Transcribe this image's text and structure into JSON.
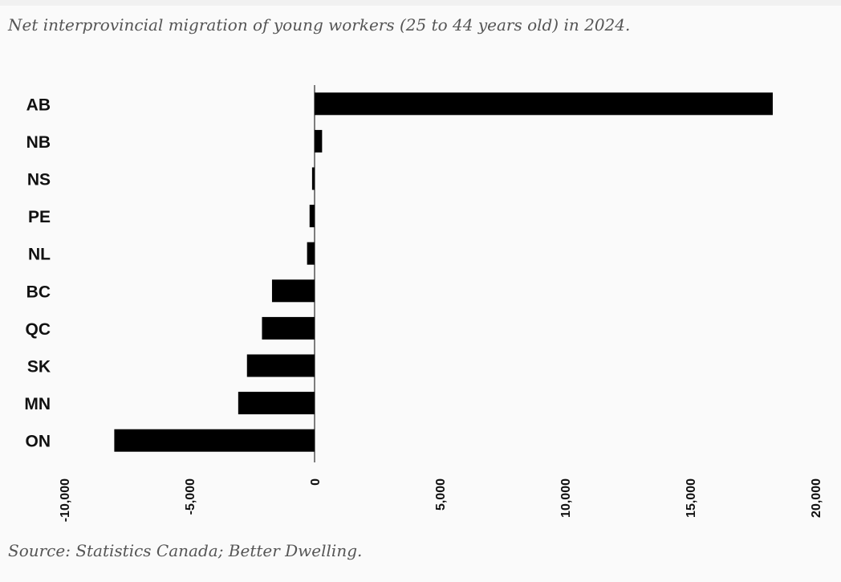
{
  "page": {
    "title": "Net interprovincial migration of young workers (25 to 44 years old) in 2024.",
    "source": "Source: Statistics Canada; Better Dwelling."
  },
  "chart_data": {
    "type": "bar",
    "orientation": "horizontal",
    "categories": [
      "AB",
      "NB",
      "NS",
      "PE",
      "NL",
      "BC",
      "QC",
      "SK",
      "MN",
      "ON"
    ],
    "values": [
      18300,
      300,
      -100,
      -200,
      -300,
      -1700,
      -2100,
      -2700,
      -3050,
      -8000
    ],
    "xlim": [
      -10000,
      20000
    ],
    "xticks": [
      "-10,000",
      "-5,000",
      "0",
      "5,000",
      "10,000",
      "15,000",
      "20,000"
    ],
    "grid": false,
    "legend": "none",
    "bar_color": "#000000",
    "background": "#fafafa",
    "text_color": "#555555"
  }
}
